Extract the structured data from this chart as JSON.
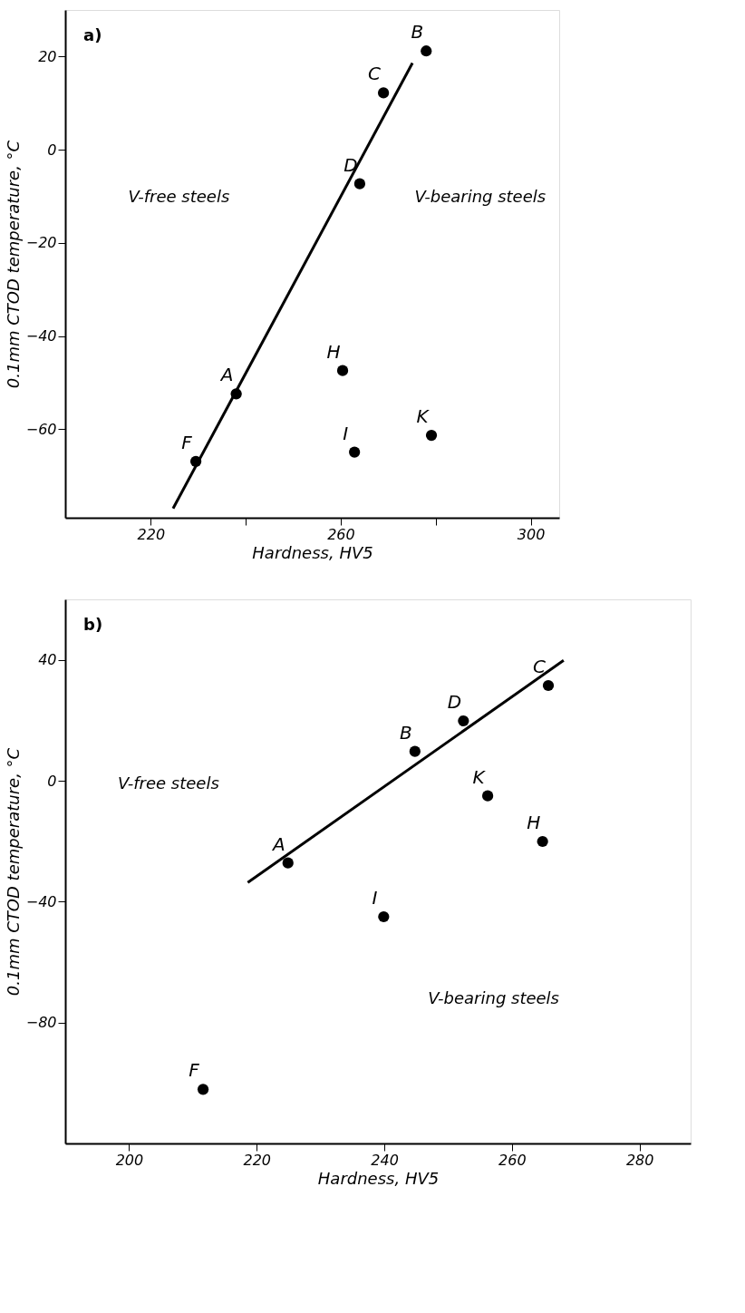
{
  "chart_data": [
    {
      "type": "scatter",
      "title": "a)",
      "xlabel": "Hardness, HV5",
      "ylabel": "0.1mm CTOD temperature, °C",
      "xlim": [
        202,
        306
      ],
      "ylim": [
        -79,
        30
      ],
      "xticks": [
        220,
        {
          "value": 240,
          "label": null
        },
        260,
        {
          "value": 280,
          "label": null
        },
        300
      ],
      "yticks": [
        -60,
        -40,
        -20,
        0,
        20
      ],
      "grid": false,
      "series": [
        {
          "color": "#000000",
          "marker": "circle",
          "x": [
            278,
            269,
            264,
            238,
            229.5,
            260.4,
            262.9,
            279.1
          ],
          "values": [
            21.2,
            12.2,
            -7.3,
            -52.4,
            -66.9,
            -47.4,
            -64.9,
            -61.3
          ]
        },
        {
          "type": "line",
          "color": "#000000",
          "marker": "none",
          "line_style": "solid",
          "x": [
            224.7,
            275.1
          ],
          "values": [
            -77,
            18.6
          ]
        }
      ],
      "annotations": [
        {
          "text": "B",
          "x": 278,
          "y": 21.2
        },
        {
          "text": "C",
          "x": 269,
          "y": 12.2
        },
        {
          "text": "D",
          "x": 264,
          "y": -7.3
        },
        {
          "text": "A",
          "x": 238,
          "y": -52.4
        },
        {
          "text": "F",
          "x": 229.5,
          "y": -66.9
        },
        {
          "text": "H",
          "x": 260.4,
          "y": -47.4
        },
        {
          "text": "I",
          "x": 262.9,
          "y": -64.9
        },
        {
          "text": "K",
          "x": 279.1,
          "y": -61.3
        },
        "V-free steels",
        "V-bearing steels"
      ]
    },
    {
      "type": "scatter",
      "title": "b)",
      "xlabel": "Hardness, HV5",
      "ylabel": "0.1mm CTOD temperature, °C",
      "xlim": [
        190,
        288
      ],
      "ylim": [
        -120,
        60
      ],
      "xticks": [
        200,
        220,
        240,
        260,
        280
      ],
      "yticks": [
        -80,
        -40,
        0,
        40
      ],
      "grid": false,
      "series": [
        {
          "color": "#000000",
          "marker": "circle",
          "x": [
            265.7,
            252.4,
            244.8,
            224.9,
            256.2,
            264.8,
            239.9,
            211.6
          ],
          "values": [
            31.5,
            19.8,
            9.7,
            -27.2,
            -5,
            -20.1,
            -45,
            -102.1
          ]
        },
        {
          "type": "line",
          "color": "#000000",
          "marker": "none",
          "line_style": "solid",
          "x": [
            218.6,
            268.1
          ],
          "values": [
            -33.7,
            39.8
          ]
        }
      ],
      "annotations": [
        {
          "text": "C",
          "x": 265.7,
          "y": 31.5
        },
        {
          "text": "D",
          "x": 252.4,
          "y": 19.8
        },
        {
          "text": "B",
          "x": 244.8,
          "y": 9.7
        },
        {
          "text": "A",
          "x": 224.9,
          "y": -27.2
        },
        {
          "text": "K",
          "x": 256.2,
          "y": -5
        },
        {
          "text": "H",
          "x": 264.8,
          "y": -20.1
        },
        {
          "text": "I",
          "x": 239.9,
          "y": -45
        },
        {
          "text": "F",
          "x": 211.6,
          "y": -102.1
        },
        "V-free steels",
        "V-bearing steels"
      ]
    }
  ]
}
